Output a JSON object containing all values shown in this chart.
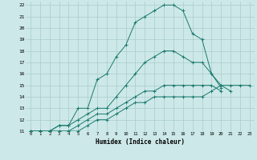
{
  "xlabel": "Humidex (Indice chaleur)",
  "xlim": [
    -0.5,
    23.5
  ],
  "ylim": [
    11,
    22.3
  ],
  "yticks": [
    11,
    12,
    13,
    14,
    15,
    16,
    17,
    18,
    19,
    20,
    21,
    22
  ],
  "xticks": [
    0,
    1,
    2,
    3,
    4,
    5,
    6,
    7,
    8,
    9,
    10,
    11,
    12,
    13,
    14,
    15,
    16,
    17,
    18,
    19,
    20,
    21,
    22,
    23
  ],
  "xtick_labels": [
    "0",
    "1",
    "2",
    "3",
    "4",
    "5",
    "6",
    "7",
    "8",
    "9",
    "10",
    "11",
    "12",
    "13",
    "14",
    "15",
    "16",
    "17",
    "18",
    "19",
    "20",
    "21",
    "22",
    "23"
  ],
  "line_color": "#1a7a6e",
  "bg_color": "#cde8e8",
  "grid_color": "#a8cccc",
  "series_x": [
    [
      0,
      1,
      2,
      3,
      4,
      5,
      6,
      7,
      8,
      9,
      10,
      11,
      12,
      13,
      14,
      15,
      16,
      17,
      18,
      19,
      20,
      21
    ],
    [
      0,
      1,
      2,
      3,
      4,
      5,
      6,
      7,
      8,
      9,
      10,
      11,
      12,
      13,
      14,
      15,
      16,
      17,
      18,
      19,
      20
    ],
    [
      0,
      1,
      2,
      3,
      4,
      5,
      6,
      7,
      8,
      9,
      10,
      11,
      12,
      13,
      14,
      15,
      16,
      17,
      18,
      19,
      20
    ],
    [
      0,
      1,
      2,
      3,
      4,
      5,
      6,
      7,
      8,
      9,
      10,
      11,
      12,
      13,
      14,
      15,
      16,
      17,
      18,
      19,
      20,
      21,
      22,
      23
    ]
  ],
  "series_y": [
    [
      11,
      11,
      11,
      11.5,
      11.5,
      13,
      13,
      15.5,
      16,
      17.5,
      18.5,
      20.5,
      21,
      21.5,
      22,
      22,
      21.5,
      19.5,
      19,
      16,
      15,
      14.5
    ],
    [
      11,
      11,
      11,
      11.5,
      11.5,
      12,
      12.5,
      13,
      13,
      14,
      15,
      16,
      17,
      17.5,
      18,
      18,
      17.5,
      17,
      17,
      16,
      14.8
    ],
    [
      11,
      11,
      11,
      11,
      11,
      11.5,
      12,
      12.5,
      12.5,
      13,
      13.5,
      14,
      14.5,
      14.5,
      15,
      15,
      15,
      15,
      15,
      15,
      14.5
    ],
    [
      11,
      11,
      11,
      11,
      11,
      11,
      11.5,
      12,
      12,
      12.5,
      13,
      13.5,
      13.5,
      14,
      14,
      14,
      14,
      14,
      14,
      14.5,
      15,
      15,
      15,
      15
    ]
  ]
}
